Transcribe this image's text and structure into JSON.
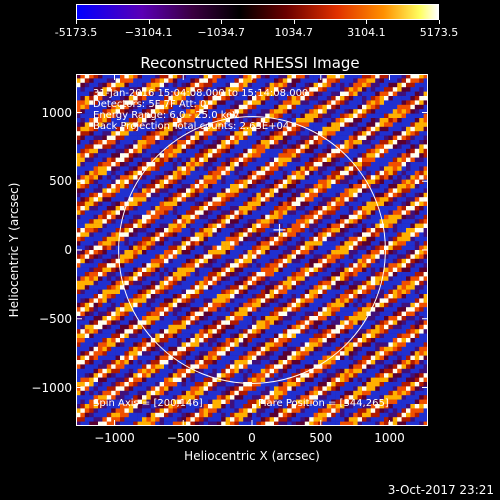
{
  "colorbar": {
    "ticks": [
      "-5173.5",
      "−3104.1",
      "−1034.7",
      "1034.7",
      "3104.1",
      "5173.5"
    ],
    "tick_values": [
      -5173.5,
      -3104.1,
      -1034.7,
      1034.7,
      3104.1,
      5173.5
    ],
    "range": [
      -5173.5,
      5173.5
    ],
    "colors": [
      "#0000ff",
      "#3a0040",
      "#000000",
      "#e03000",
      "#ffff60",
      "#ffffff"
    ]
  },
  "chart_data": {
    "type": "heatmap",
    "title": "Reconstructed RHESSI Image",
    "xlabel": "Heliocentric X (arcsec)",
    "ylabel": "Heliocentric Y (arcsec)",
    "xlim": [
      -1280,
      1280
    ],
    "ylim": [
      -1280,
      1280
    ],
    "xticks": [
      -1000,
      -500,
      0,
      500,
      1000
    ],
    "xtick_labels": [
      "−1000",
      "−500",
      "0",
      "500",
      "1000"
    ],
    "yticks": [
      -1000,
      -500,
      0,
      500,
      1000
    ],
    "ytick_labels": [
      "−1000",
      "−500",
      "0",
      "500",
      "1000"
    ],
    "solar_limb_radius": 970,
    "flare_marker": [
      200,
      146
    ],
    "annotations": {
      "time_range": "31-Jan-2016 15:04:08.000 to 15:14:08.000",
      "detectors": "Detectors: 5F 7F  Att: 0",
      "energy": "Energy Range: 6.0 - 25.0 keV",
      "method": "Back Projection    Total counts: 2.63E+04",
      "spin_axis": "Spin Axis = [200,146]",
      "flare_position": "Flare Position = [344,265]"
    }
  },
  "timestamp": "3-Oct-2017 23:21"
}
